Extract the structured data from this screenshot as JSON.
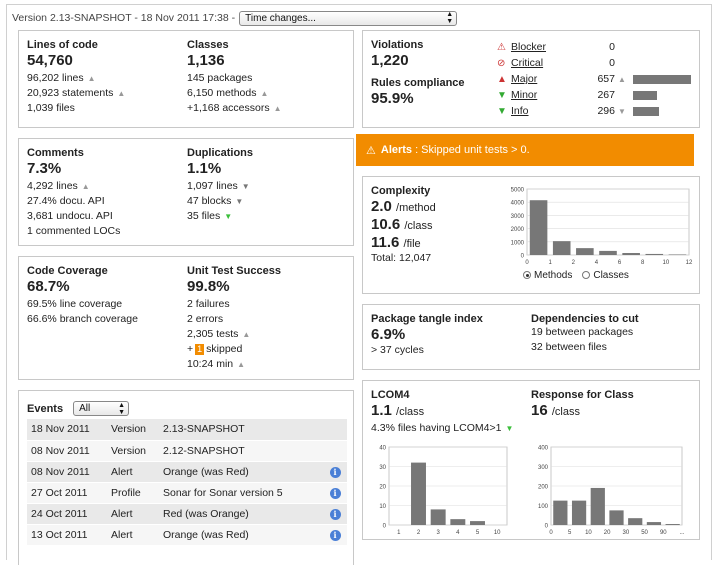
{
  "header": {
    "version_text": "Version 2.13-SNAPSHOT - 18 Nov 2011 17:38 -",
    "time_select": "Time changes..."
  },
  "size": {
    "lines_label": "Lines of code",
    "lines_value": "54,760",
    "lines_total": "96,202 lines",
    "statements": "20,923 statements",
    "files": "1,039 files",
    "classes_label": "Classes",
    "classes_value": "1,136",
    "packages": "145 packages",
    "methods": "6,150 methods",
    "accessors": "+1,168 accessors"
  },
  "comments": {
    "comments_label": "Comments",
    "comments_value": "7.3%",
    "lines": "4,292 lines",
    "docu_api": "27.4% docu. API",
    "undocu_api": "3,681 undocu. API",
    "commented_locs": "1 commented LOCs",
    "dup_label": "Duplications",
    "dup_value": "1.1%",
    "dup_lines": "1,097 lines",
    "dup_blocks": "47 blocks",
    "dup_files": "35 files"
  },
  "coverage": {
    "cov_label": "Code Coverage",
    "cov_value": "68.7%",
    "line_cov": "69.5% line coverage",
    "branch_cov": "66.6% branch coverage",
    "ut_label": "Unit Test Success",
    "ut_value": "99.8%",
    "failures": "2 failures",
    "errors": "2 errors",
    "tests": "2,305 tests",
    "skipped_prefix": "+",
    "skipped_count": "1",
    "skipped_suffix": "skipped",
    "duration": "10:24 min"
  },
  "events": {
    "label": "Events",
    "filter": "All",
    "rows": [
      {
        "date": "18 Nov 2011",
        "category": "Version",
        "name": "2.13-SNAPSHOT",
        "info": false
      },
      {
        "date": "08 Nov 2011",
        "category": "Version",
        "name": "2.12-SNAPSHOT",
        "info": false
      },
      {
        "date": "08 Nov 2011",
        "category": "Alert",
        "name": "Orange (was Red)",
        "info": true
      },
      {
        "date": "27 Oct 2011",
        "category": "Profile",
        "name": "Sonar for Sonar version 5",
        "info": true
      },
      {
        "date": "24 Oct 2011",
        "category": "Alert",
        "name": "Red (was Orange)",
        "info": true
      },
      {
        "date": "13 Oct 2011",
        "category": "Alert",
        "name": "Orange (was Red)",
        "info": true
      }
    ]
  },
  "violations": {
    "label": "Violations",
    "value": "1,220",
    "compliance_label": "Rules compliance",
    "compliance_value": "95.9%",
    "rows": [
      {
        "name": "Blocker",
        "count": "0",
        "icon": "blocker-icon",
        "color": "#cc3333",
        "trend": "",
        "bar": 0
      },
      {
        "name": "Critical",
        "count": "0",
        "icon": "critical-icon",
        "color": "#cc3333",
        "trend": "",
        "bar": 0
      },
      {
        "name": "Major",
        "count": "657",
        "icon": "major-icon",
        "color": "#cc3333",
        "trend": "up",
        "bar": 657
      },
      {
        "name": "Minor",
        "count": "267",
        "icon": "minor-icon",
        "color": "#33aa33",
        "trend": "",
        "bar": 267
      },
      {
        "name": "Info",
        "count": "296",
        "icon": "info-icon",
        "color": "#33aa33",
        "trend": "down",
        "bar": 296
      }
    ]
  },
  "alert": {
    "title": "Alerts",
    "text": ": Skipped unit tests > 0."
  },
  "complexity": {
    "label": "Complexity",
    "per_method": "2.0",
    "per_method_unit": "/method",
    "per_class": "10.6",
    "per_class_unit": "/class",
    "per_file": "11.6",
    "per_file_unit": "/file",
    "total": "Total: 12,047",
    "radio_methods": "Methods",
    "radio_classes": "Classes",
    "selected": "Methods"
  },
  "tangle": {
    "label": "Package tangle index",
    "value": "6.9%",
    "cycles": "> 37 cycles",
    "deps_label": "Dependencies to cut",
    "deps_packages": "19 between packages",
    "deps_files": "32 between files"
  },
  "lcom": {
    "label": "LCOM4",
    "value": "1.1",
    "unit": "/class",
    "files": "4.3% files having LCOM4>1",
    "rfc_label": "Response for Class",
    "rfc_value": "16",
    "rfc_unit": "/class"
  },
  "chart_data": [
    {
      "type": "bar",
      "title": "",
      "categories": [
        "1",
        "2",
        "4",
        "6",
        "8",
        "10",
        "12"
      ],
      "tick_labels": [
        "0",
        "1",
        "2",
        "4",
        "6",
        "8",
        "10",
        "12"
      ],
      "values": [
        4150,
        1050,
        520,
        310,
        150,
        80,
        40
      ],
      "ylim": [
        0,
        5000
      ],
      "yticks": [
        0,
        1000,
        2000,
        3000,
        4000,
        5000
      ]
    },
    {
      "type": "bar",
      "title": "",
      "categories": [
        "1",
        "2",
        "3",
        "4",
        "5",
        "10"
      ],
      "tick_labels": [
        "1",
        "2",
        "3",
        "4",
        "5",
        "10"
      ],
      "values": [
        0,
        32,
        8,
        3,
        2,
        0
      ],
      "ylim": [
        0,
        40
      ],
      "yticks": [
        0,
        10,
        20,
        30,
        40
      ]
    },
    {
      "type": "bar",
      "title": "",
      "categories": [
        "0",
        "5",
        "10",
        "20",
        "30",
        "50",
        "90"
      ],
      "tick_labels": [
        "0",
        "5",
        "10",
        "20",
        "30",
        "50",
        "90",
        "..."
      ],
      "values": [
        125,
        125,
        190,
        75,
        35,
        15,
        5
      ],
      "ylim": [
        0,
        400
      ],
      "yticks": [
        0,
        100,
        200,
        300,
        400
      ]
    }
  ]
}
